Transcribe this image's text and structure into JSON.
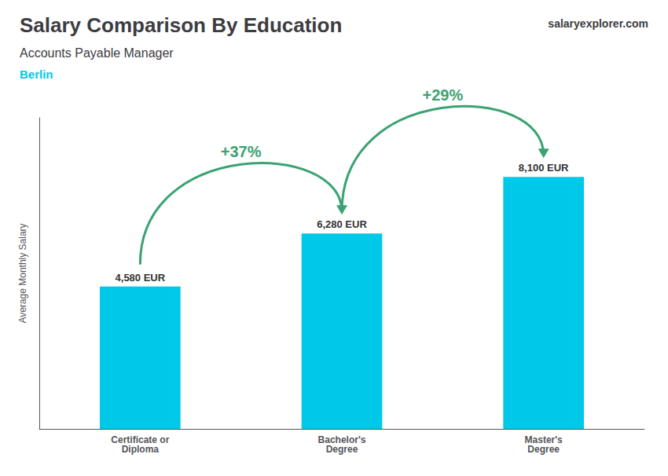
{
  "chart_data": {
    "type": "bar",
    "title": "Salary Comparison By Education",
    "subtitle": "Accounts Payable Manager",
    "location": "Berlin",
    "brand": "salaryexplorer.com",
    "categories": [
      "Certificate or\nDiploma",
      "Bachelor's\nDegree",
      "Master's\nDegree"
    ],
    "values": [
      4580,
      6280,
      8100
    ],
    "value_labels": [
      "4,580 EUR",
      "6,280 EUR",
      "8,100 EUR"
    ],
    "data_labels": true,
    "change_labels": [
      "+37%",
      "+29%"
    ],
    "color": "#00c8e8",
    "ylabel": "Average Monthly Salary",
    "ylim": [
      0,
      10000
    ],
    "tick_labels": "x",
    "grid": false
  }
}
